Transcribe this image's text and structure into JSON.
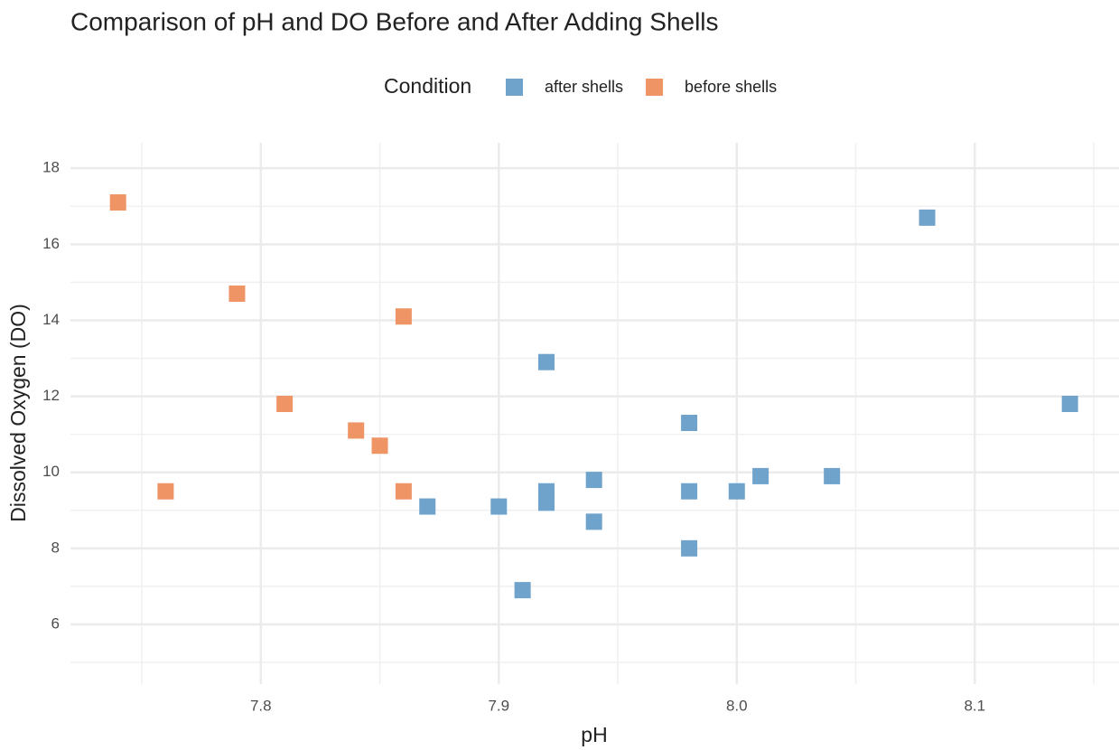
{
  "chart_data": {
    "type": "scatter",
    "title": "Comparison of pH and DO Before and After Adding Shells",
    "xlabel": "pH",
    "ylabel": "Dissolved Oxygen (DO)",
    "legend_title": "Condition",
    "legend": "top",
    "grid": true,
    "xlim": [
      7.72,
      8.161
    ],
    "ylim": [
      4.43,
      18.67
    ],
    "xticks": [
      7.8,
      7.9,
      {
        "value": 8.0,
        "label": "8.0"
      },
      8.1
    ],
    "yticks": [
      6,
      8,
      10,
      12,
      14,
      16,
      18
    ],
    "series": [
      {
        "name": "after shells",
        "color": "#6fa3cb",
        "x": [
          8.08,
          7.92,
          8.14,
          7.98,
          8.01,
          8.04,
          7.94,
          7.92,
          7.92,
          7.98,
          8.0,
          7.87,
          7.9,
          7.94,
          7.98,
          7.91
        ],
        "values": [
          16.7,
          12.9,
          11.8,
          11.3,
          9.9,
          9.9,
          9.8,
          9.5,
          9.2,
          9.5,
          9.5,
          9.1,
          9.1,
          8.7,
          8.0,
          6.9
        ]
      },
      {
        "name": "before shells",
        "color": "#ef9465",
        "x": [
          7.74,
          7.79,
          7.86,
          7.81,
          7.84,
          7.85,
          7.76,
          7.86
        ],
        "values": [
          17.1,
          14.7,
          14.1,
          11.8,
          11.1,
          10.7,
          9.5,
          9.5
        ]
      }
    ]
  }
}
